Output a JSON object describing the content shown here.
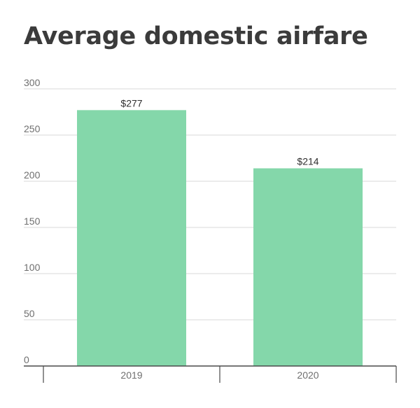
{
  "chart_data": {
    "type": "bar",
    "title": "Average domestic airfare",
    "xlabel": "",
    "ylabel": "",
    "categories": [
      "2019",
      "2020"
    ],
    "values": [
      277,
      214
    ],
    "data_labels": [
      "$277",
      "$214"
    ],
    "ylim": [
      0,
      300
    ],
    "yticks": [
      "0",
      "50",
      "100",
      "150",
      "200",
      "250",
      "300"
    ],
    "grid": true,
    "legend": "none",
    "bar_color": "#84d7aa"
  }
}
